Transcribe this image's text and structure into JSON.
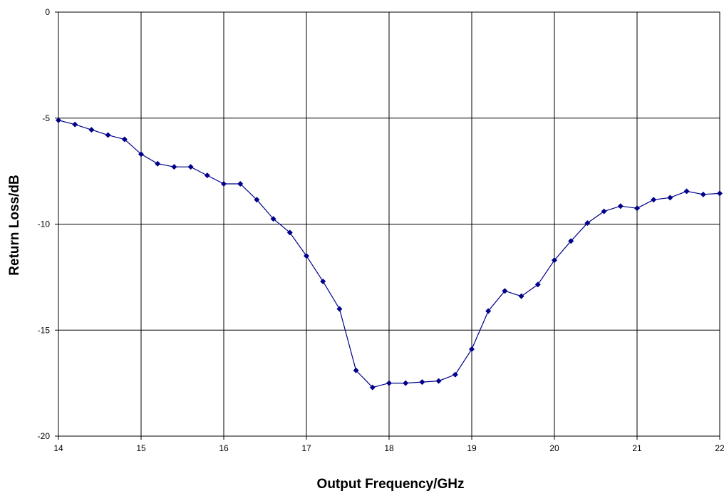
{
  "chart_data": {
    "type": "line",
    "title": "",
    "xlabel": "Output Frequency/GHz",
    "ylabel": "Return Loss/dB",
    "xlim": [
      14,
      22
    ],
    "ylim": [
      -20,
      0
    ],
    "xticks": [
      "14",
      "15",
      "16",
      "17",
      "18",
      "19",
      "20",
      "21",
      "22"
    ],
    "yticks": [
      "0",
      "-5",
      "-10",
      "-15",
      "-20"
    ],
    "grid": true,
    "legend": "none",
    "series": [
      {
        "color": "#00008B",
        "marker": "diamond",
        "x": [
          14.0,
          14.2,
          14.4,
          14.6,
          14.8,
          15.0,
          15.2,
          15.4,
          15.6,
          15.8,
          16.0,
          16.2,
          16.4,
          16.6,
          16.8,
          17.0,
          17.2,
          17.4,
          17.6,
          17.8,
          18.0,
          18.2,
          18.4,
          18.6,
          18.8,
          19.0,
          19.2,
          19.4,
          19.6,
          19.8,
          20.0,
          20.2,
          20.4,
          20.6,
          20.8,
          21.0,
          21.2,
          21.4,
          21.6,
          21.8,
          22.0
        ],
        "y": [
          -5.1,
          -5.3,
          -5.55,
          -5.8,
          -6.0,
          -6.7,
          -7.15,
          -7.3,
          -7.3,
          -7.7,
          -8.1,
          -8.1,
          -8.85,
          -9.75,
          -10.4,
          -11.5,
          -12.7,
          -14.0,
          -16.9,
          -17.7,
          -17.5,
          -17.5,
          -17.45,
          -17.4,
          -17.1,
          -15.9,
          -14.1,
          -13.15,
          -13.4,
          -12.85,
          -11.7,
          -10.8,
          -9.95,
          -9.4,
          -9.15,
          -9.25,
          -8.85,
          -8.75,
          -8.45,
          -8.6,
          -8.55
        ]
      }
    ]
  }
}
